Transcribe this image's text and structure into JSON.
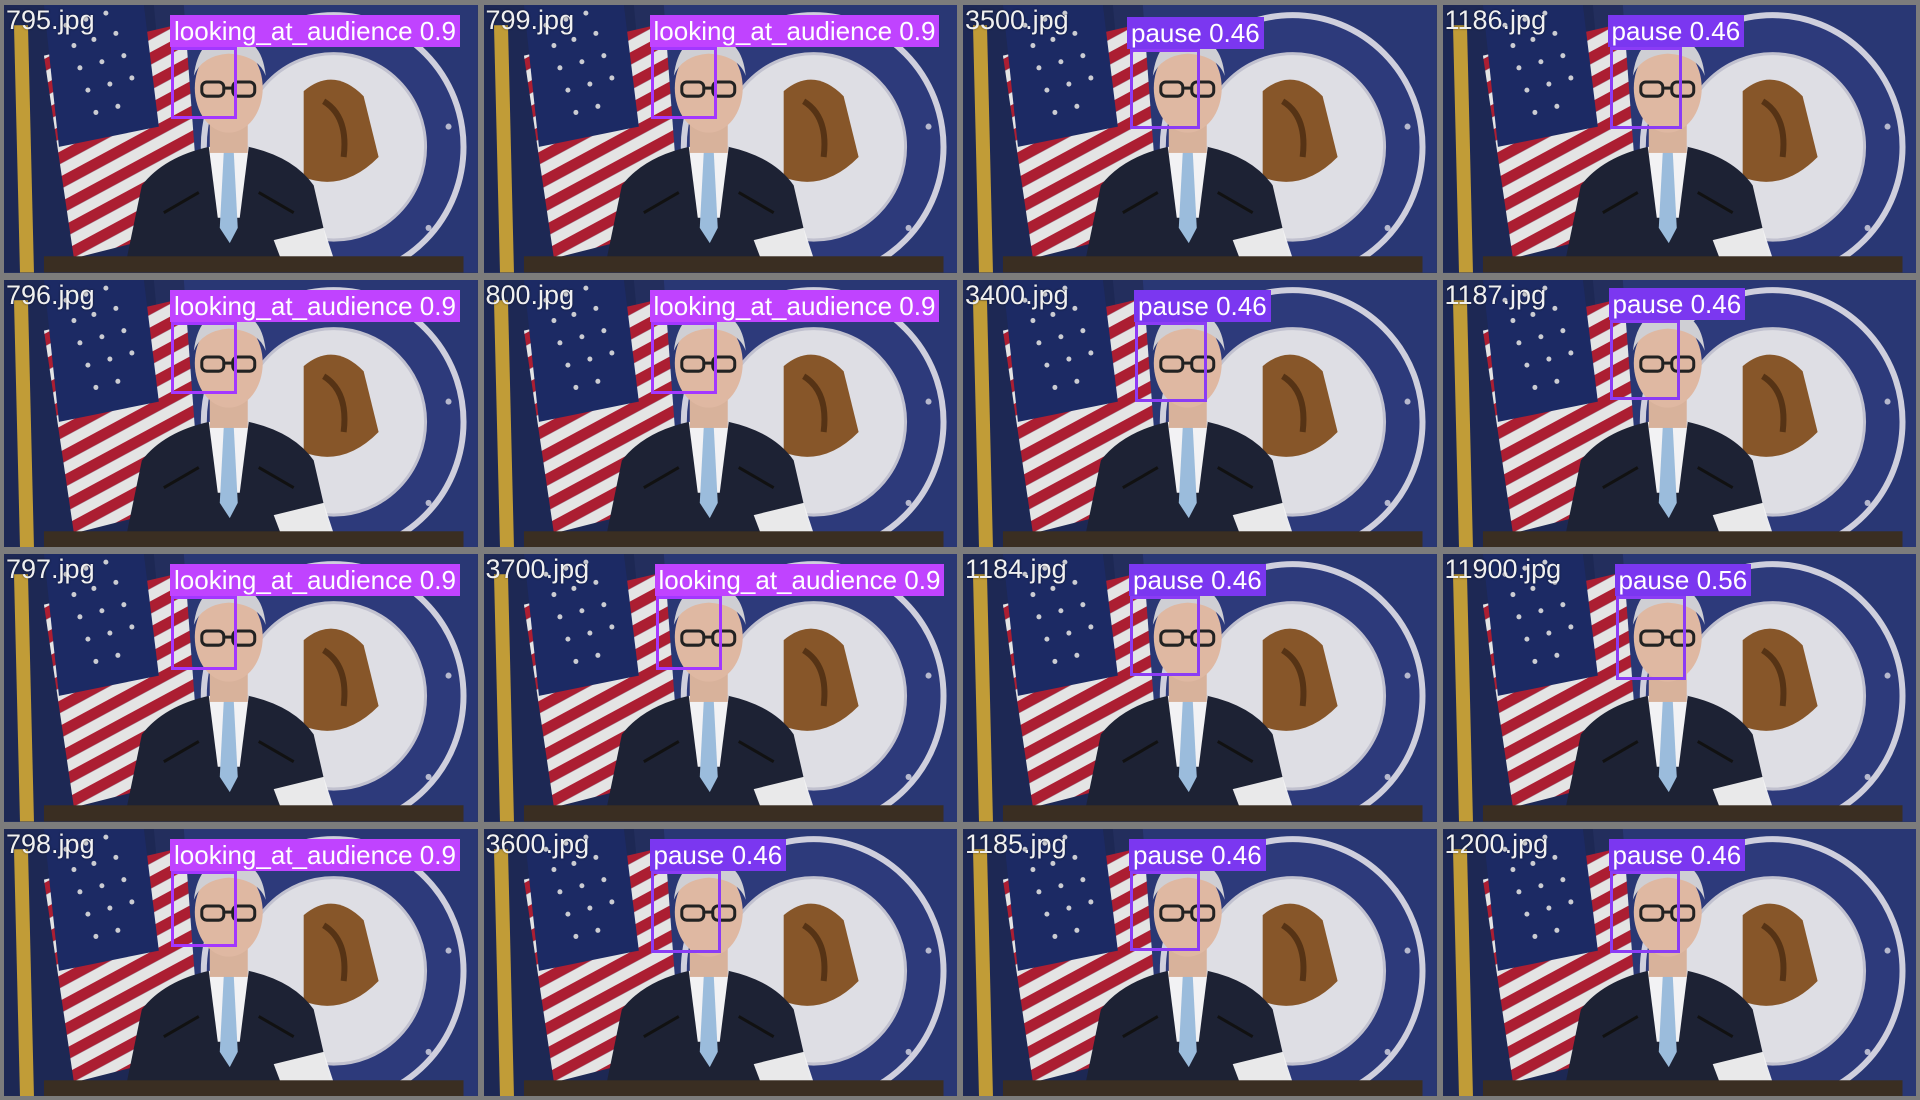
{
  "colors": {
    "looking_at_audience": "#c043ff",
    "pause": "#7b37f0",
    "grid_background": "#7c7c7c"
  },
  "tiles": [
    {
      "file": "795.jpg",
      "label": "looking_at_audience 0.9",
      "class": "looking_at_audience",
      "confidence": 0.9
    },
    {
      "file": "799.jpg",
      "label": "looking_at_audience 0.9",
      "class": "looking_at_audience",
      "confidence": 0.9
    },
    {
      "file": "3500.jpg",
      "label": "pause 0.46",
      "class": "pause",
      "confidence": 0.46
    },
    {
      "file": "1186.jpg",
      "label": "pause 0.46",
      "class": "pause",
      "confidence": 0.46
    },
    {
      "file": "796.jpg",
      "label": "looking_at_audience 0.9",
      "class": "looking_at_audience",
      "confidence": 0.9
    },
    {
      "file": "800.jpg",
      "label": "looking_at_audience 0.9",
      "class": "looking_at_audience",
      "confidence": 0.9
    },
    {
      "file": "3400.jpg",
      "label": "pause 0.46",
      "class": "pause",
      "confidence": 0.46
    },
    {
      "file": "1187.jpg",
      "label": "pause 0.46",
      "class": "pause",
      "confidence": 0.46
    },
    {
      "file": "797.jpg",
      "label": "looking_at_audience 0.9",
      "class": "looking_at_audience",
      "confidence": 0.9
    },
    {
      "file": "3700.jpg",
      "label": "looking_at_audience 0.9",
      "class": "looking_at_audience",
      "confidence": 0.9
    },
    {
      "file": "1184.jpg",
      "label": "pause 0.46",
      "class": "pause",
      "confidence": 0.46
    },
    {
      "file": "11900.jpg",
      "label": "pause 0.56",
      "class": "pause",
      "confidence": 0.56
    },
    {
      "file": "798.jpg",
      "label": "looking_at_audience 0.9",
      "class": "looking_at_audience",
      "confidence": 0.9
    },
    {
      "file": "3600.jpg",
      "label": "pause 0.46",
      "class": "pause",
      "confidence": 0.46
    },
    {
      "file": "1185.jpg",
      "label": "pause 0.46",
      "class": "pause",
      "confidence": 0.46
    },
    {
      "file": "1200.jpg",
      "label": "pause 0.46",
      "class": "pause",
      "confidence": 0.46
    }
  ]
}
